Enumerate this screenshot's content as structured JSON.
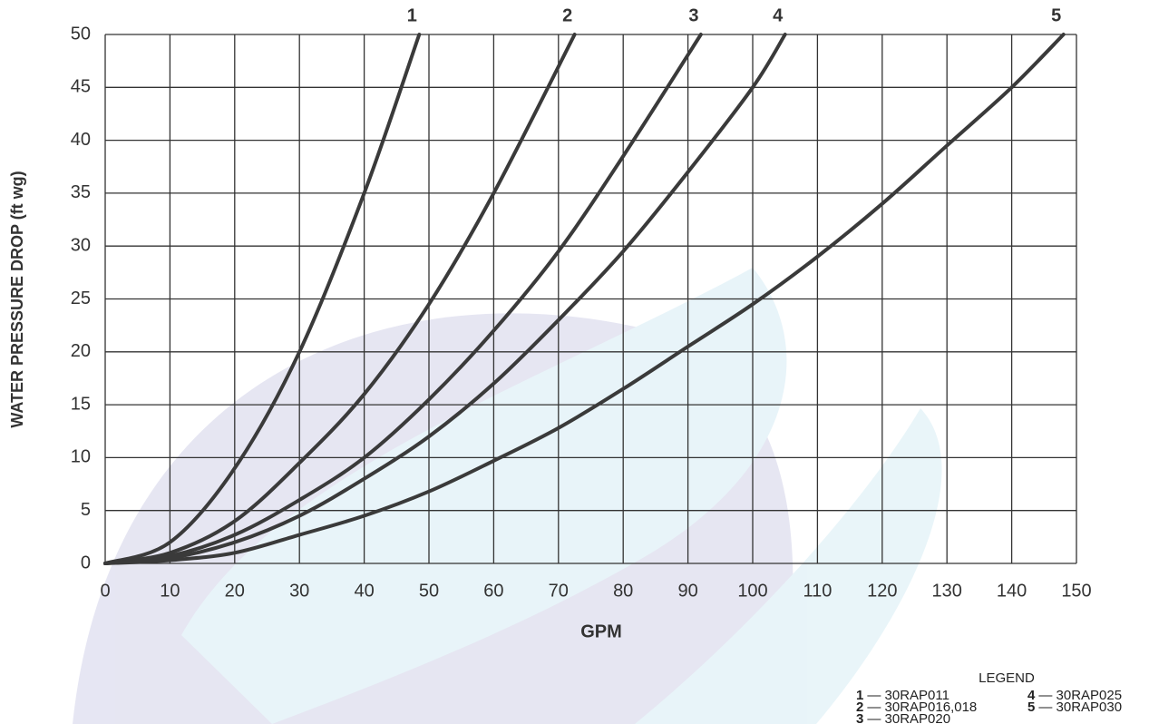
{
  "chart_data": {
    "type": "line",
    "x_label": "GPM",
    "y_label": "WATER PRESSURE DROP (ft wg)",
    "xlim": [
      0,
      150
    ],
    "xticks": [
      0,
      10,
      20,
      30,
      40,
      50,
      60,
      70,
      80,
      90,
      100,
      110,
      120,
      130,
      140,
      150
    ],
    "ylim": [
      0,
      50
    ],
    "yticks": [
      0,
      5,
      10,
      15,
      20,
      25,
      30,
      35,
      40,
      45,
      50
    ],
    "grid": true,
    "series": [
      {
        "name": "1",
        "color": "#3a3a3a",
        "x": [
          0,
          10,
          20,
          30,
          40,
          48.5
        ],
        "values": [
          0,
          2,
          9,
          20,
          35,
          50
        ]
      },
      {
        "name": "2",
        "color": "#3a3a3a",
        "x": [
          0,
          10,
          20,
          30,
          40,
          50,
          60,
          72.5
        ],
        "values": [
          0,
          1,
          4,
          9.5,
          16,
          24.5,
          35,
          50
        ]
      },
      {
        "name": "3",
        "color": "#3a3a3a",
        "x": [
          0,
          10,
          20,
          30,
          40,
          50,
          60,
          70,
          80,
          92
        ],
        "values": [
          0,
          0.7,
          2.7,
          6,
          10,
          15.5,
          22,
          29.5,
          38.5,
          50
        ]
      },
      {
        "name": "4",
        "color": "#3a3a3a",
        "x": [
          0,
          10,
          20,
          30,
          40,
          50,
          60,
          70,
          80,
          90,
          100,
          105
        ],
        "values": [
          0,
          0.5,
          2,
          4.5,
          8,
          12,
          17,
          23,
          29.5,
          37,
          45,
          50
        ]
      },
      {
        "name": "5",
        "color": "#3a3a3a",
        "x": [
          0,
          10,
          20,
          30,
          40,
          50,
          60,
          70,
          80,
          90,
          100,
          110,
          120,
          130,
          140,
          148
        ],
        "values": [
          0,
          0.3,
          1,
          2.7,
          4.5,
          6.8,
          9.7,
          12.8,
          16.5,
          20.5,
          24.5,
          29,
          34,
          39.5,
          45,
          50
        ]
      }
    ],
    "legend": {
      "title": "LEGEND",
      "entries": [
        {
          "key": "1",
          "label": "— 30RAP011"
        },
        {
          "key": "2",
          "label": "— 30RAP016,018"
        },
        {
          "key": "3",
          "label": "— 30RAP020"
        },
        {
          "key": "4",
          "label": "— 30RAP025"
        },
        {
          "key": "5",
          "label": "— 30RAP030"
        }
      ]
    }
  }
}
